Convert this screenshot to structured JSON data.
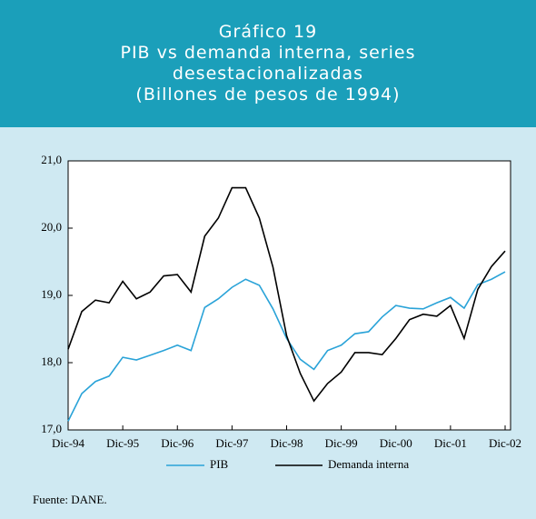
{
  "chart_data": {
    "type": "line",
    "title": "Gráfico 19",
    "subtitle": "PIB vs demanda interna, series desestacionalizadas",
    "units": "(Billones de pesos de 1994)",
    "source": "Fuente: DANE.",
    "categories": [
      "Dic-94",
      null,
      null,
      null,
      "Dic-95",
      null,
      null,
      null,
      "Dic-96",
      null,
      null,
      null,
      "Dic-97",
      null,
      null,
      null,
      "Dic-98",
      null,
      null,
      null,
      "Dic-99",
      null,
      null,
      null,
      "Dic-00",
      null,
      null,
      null,
      "Dic-01",
      null,
      null,
      null,
      "Dic-02"
    ],
    "series": [
      {
        "name": "PIB",
        "color": "#2aa3d8",
        "values": [
          17.13,
          17.54,
          17.72,
          17.8,
          18.08,
          18.04,
          18.11,
          18.18,
          18.26,
          18.18,
          18.82,
          18.95,
          19.12,
          19.24,
          19.15,
          18.8,
          18.36,
          18.05,
          17.9,
          18.18,
          18.26,
          18.43,
          18.46,
          18.68,
          18.85,
          18.81,
          18.8,
          18.89,
          18.97,
          18.81,
          19.16,
          19.24,
          19.35
        ]
      },
      {
        "name": "Demanda interna",
        "color": "#000000",
        "values": [
          18.2,
          18.76,
          18.93,
          18.89,
          19.21,
          18.95,
          19.05,
          19.29,
          19.31,
          19.05,
          19.88,
          20.15,
          20.6,
          20.6,
          20.15,
          19.42,
          18.4,
          17.84,
          17.43,
          17.69,
          17.86,
          18.15,
          18.15,
          18.12,
          18.36,
          18.64,
          18.72,
          18.69,
          18.85,
          18.36,
          19.09,
          19.43,
          19.66
        ]
      }
    ],
    "ylim": [
      17,
      21
    ],
    "yticks": [
      {
        "value": 17,
        "label": "17,0"
      },
      {
        "value": 18,
        "label": "18,0"
      },
      {
        "value": 19,
        "label": "19,0"
      },
      {
        "value": 20,
        "label": "20,0"
      },
      {
        "value": 21,
        "label": "21,0"
      }
    ],
    "grid": false
  }
}
